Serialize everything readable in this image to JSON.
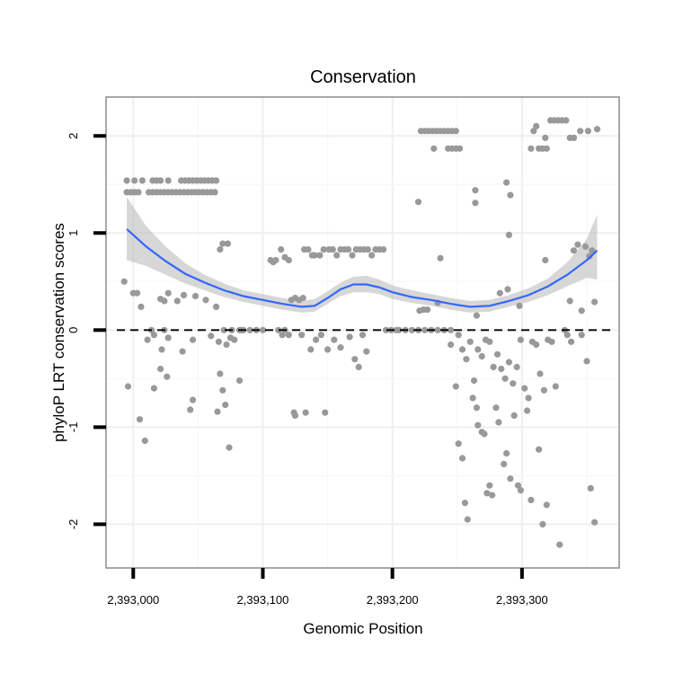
{
  "chart_data": {
    "type": "scatter",
    "title": "Conservation",
    "xlabel": "Genomic Position",
    "ylabel": "phyloP LRT conservation scores",
    "xlim": [
      2392979,
      2393375
    ],
    "ylim": [
      -2.45,
      2.4
    ],
    "x_ticks": [
      2393000,
      2393100,
      2393200,
      2393300
    ],
    "x_tick_labels": [
      "2,393,000",
      "2,393,100",
      "2,393,200",
      "2,393,300"
    ],
    "y_ticks": [
      -2,
      -1,
      0,
      1,
      2
    ],
    "y_tick_labels": [
      "-2",
      "-1",
      "0",
      "1",
      "2"
    ],
    "reference_line": {
      "y": 0,
      "style": "dashed",
      "color": "#000000"
    },
    "grid": true,
    "colors": {
      "points": "#999999",
      "smooth": "#3366ff",
      "band": "#bdbdbd"
    },
    "smooth": {
      "x": [
        2392995,
        2393010,
        2393025,
        2393040,
        2393055,
        2393070,
        2393085,
        2393100,
        2393115,
        2393130,
        2393140,
        2393150,
        2393160,
        2393170,
        2393180,
        2393190,
        2393200,
        2393215,
        2393230,
        2393245,
        2393260,
        2393275,
        2393290,
        2393305,
        2393320,
        2393335,
        2393350,
        2393358
      ],
      "y": [
        1.04,
        0.86,
        0.71,
        0.58,
        0.49,
        0.41,
        0.35,
        0.31,
        0.27,
        0.24,
        0.25,
        0.33,
        0.42,
        0.47,
        0.47,
        0.44,
        0.39,
        0.34,
        0.31,
        0.27,
        0.24,
        0.25,
        0.3,
        0.36,
        0.45,
        0.57,
        0.72,
        0.82
      ],
      "lower": [
        0.72,
        0.66,
        0.57,
        0.48,
        0.41,
        0.34,
        0.29,
        0.25,
        0.21,
        0.18,
        0.19,
        0.27,
        0.35,
        0.39,
        0.39,
        0.37,
        0.32,
        0.28,
        0.25,
        0.21,
        0.18,
        0.19,
        0.24,
        0.29,
        0.36,
        0.45,
        0.54,
        0.52
      ],
      "upper": [
        1.37,
        1.07,
        0.86,
        0.69,
        0.57,
        0.48,
        0.41,
        0.37,
        0.33,
        0.3,
        0.32,
        0.4,
        0.49,
        0.55,
        0.56,
        0.52,
        0.46,
        0.41,
        0.37,
        0.33,
        0.3,
        0.31,
        0.36,
        0.43,
        0.53,
        0.7,
        0.94,
        1.19
      ]
    },
    "points": [
      [
        2392995,
        1.54
      ],
      [
        2393001,
        1.54
      ],
      [
        2393007,
        1.54
      ],
      [
        2393015,
        1.54
      ],
      [
        2393018,
        1.54
      ],
      [
        2393021,
        1.54
      ],
      [
        2393027,
        1.54
      ],
      [
        2393037,
        1.54
      ],
      [
        2393040,
        1.54
      ],
      [
        2393043,
        1.54
      ],
      [
        2393046,
        1.54
      ],
      [
        2393049,
        1.54
      ],
      [
        2393052,
        1.54
      ],
      [
        2393055,
        1.54
      ],
      [
        2393058,
        1.54
      ],
      [
        2393061,
        1.54
      ],
      [
        2393064,
        1.54
      ],
      [
        2392995,
        1.42
      ],
      [
        2392998,
        1.42
      ],
      [
        2393001,
        1.42
      ],
      [
        2393004,
        1.42
      ],
      [
        2393012,
        1.42
      ],
      [
        2393015,
        1.42
      ],
      [
        2393018,
        1.42
      ],
      [
        2393021,
        1.42
      ],
      [
        2393024,
        1.42
      ],
      [
        2393027,
        1.42
      ],
      [
        2393030,
        1.42
      ],
      [
        2393033,
        1.42
      ],
      [
        2393036,
        1.42
      ],
      [
        2393039,
        1.42
      ],
      [
        2393042,
        1.42
      ],
      [
        2393045,
        1.42
      ],
      [
        2393048,
        1.42
      ],
      [
        2393051,
        1.42
      ],
      [
        2393054,
        1.42
      ],
      [
        2393057,
        1.42
      ],
      [
        2393060,
        1.42
      ],
      [
        2393063,
        1.42
      ],
      [
        2393067,
        0.83
      ],
      [
        2393069,
        0.89
      ],
      [
        2393073,
        0.89
      ],
      [
        2393106,
        0.72
      ],
      [
        2393108,
        0.7
      ],
      [
        2393110,
        0.72
      ],
      [
        2393114,
        0.83
      ],
      [
        2393117,
        0.75
      ],
      [
        2393120,
        0.72
      ],
      [
        2393132,
        0.83
      ],
      [
        2393135,
        0.83
      ],
      [
        2393138,
        0.77
      ],
      [
        2393140,
        0.77
      ],
      [
        2393144,
        0.77
      ],
      [
        2393147,
        0.83
      ],
      [
        2393151,
        0.83
      ],
      [
        2393154,
        0.83
      ],
      [
        2393157,
        0.77
      ],
      [
        2393160,
        0.83
      ],
      [
        2393163,
        0.83
      ],
      [
        2393166,
        0.83
      ],
      [
        2393169,
        0.77
      ],
      [
        2393172,
        0.83
      ],
      [
        2393175,
        0.83
      ],
      [
        2393178,
        0.83
      ],
      [
        2393181,
        0.83
      ],
      [
        2393184,
        0.77
      ],
      [
        2393187,
        0.83
      ],
      [
        2393190,
        0.83
      ],
      [
        2393193,
        0.83
      ],
      [
        2393222,
        2.05
      ],
      [
        2393225,
        2.05
      ],
      [
        2393228,
        2.05
      ],
      [
        2393231,
        2.05
      ],
      [
        2393234,
        2.05
      ],
      [
        2393237,
        2.05
      ],
      [
        2393240,
        2.05
      ],
      [
        2393243,
        2.05
      ],
      [
        2393246,
        2.05
      ],
      [
        2393249,
        2.05
      ],
      [
        2393232,
        1.87
      ],
      [
        2393243,
        1.87
      ],
      [
        2393246,
        1.87
      ],
      [
        2393249,
        1.87
      ],
      [
        2393252,
        1.87
      ],
      [
        2393220,
        1.32
      ],
      [
        2393264,
        1.44
      ],
      [
        2393264,
        1.31
      ],
      [
        2393288,
        1.52
      ],
      [
        2393291,
        1.39
      ],
      [
        2393290,
        0.98
      ],
      [
        2393307,
        1.87
      ],
      [
        2393309,
        2.05
      ],
      [
        2393311,
        2.1
      ],
      [
        2393313,
        1.87
      ],
      [
        2393316,
        1.87
      ],
      [
        2393319,
        1.87
      ],
      [
        2393318,
        1.98
      ],
      [
        2393322,
        2.16
      ],
      [
        2393325,
        2.16
      ],
      [
        2393328,
        2.16
      ],
      [
        2393331,
        2.16
      ],
      [
        2393334,
        2.16
      ],
      [
        2393337,
        1.98
      ],
      [
        2393340,
        1.98
      ],
      [
        2393345,
        2.05
      ],
      [
        2393351,
        2.05
      ],
      [
        2393358,
        2.07
      ],
      [
        2392993,
        0.5
      ],
      [
        2393000,
        0.38
      ],
      [
        2393003,
        0.38
      ],
      [
        2393006,
        0.24
      ],
      [
        2393021,
        0.32
      ],
      [
        2393024,
        0.3
      ],
      [
        2393027,
        0.38
      ],
      [
        2393034,
        0.3
      ],
      [
        2393039,
        0.36
      ],
      [
        2393048,
        0.35
      ],
      [
        2393056,
        0.31
      ],
      [
        2393064,
        0.24
      ],
      [
        2393070,
        0.0
      ],
      [
        2393076,
        0.0
      ],
      [
        2393082,
        0.0
      ],
      [
        2393085,
        0.0
      ],
      [
        2393090,
        0.0
      ],
      [
        2393095,
        0.0
      ],
      [
        2393100,
        0.0
      ],
      [
        2393112,
        0.0
      ],
      [
        2393117,
        0.0
      ],
      [
        2393122,
        0.31
      ],
      [
        2393125,
        0.33
      ],
      [
        2393128,
        0.31
      ],
      [
        2393131,
        0.33
      ],
      [
        2393205,
        0.0
      ],
      [
        2393210,
        0.0
      ],
      [
        2393215,
        0.0
      ],
      [
        2393220,
        0.0
      ],
      [
        2393225,
        0.0
      ],
      [
        2393230,
        0.0
      ],
      [
        2393235,
        0.0
      ],
      [
        2393240,
        0.0
      ],
      [
        2393245,
        0.0
      ],
      [
        2393203,
        0.0
      ],
      [
        2393199,
        0.0
      ],
      [
        2393195,
        0.0
      ],
      [
        2393221,
        0.2
      ],
      [
        2393224,
        0.21
      ],
      [
        2393227,
        0.21
      ],
      [
        2393235,
        0.28
      ],
      [
        2393237,
        0.74
      ],
      [
        2393265,
        0.15
      ],
      [
        2393283,
        0.38
      ],
      [
        2393289,
        0.42
      ],
      [
        2393298,
        0.25
      ],
      [
        2393318,
        0.72
      ],
      [
        2393337,
        0.3
      ],
      [
        2393340,
        0.82
      ],
      [
        2393343,
        0.88
      ],
      [
        2393346,
        0.2
      ],
      [
        2393349,
        0.86
      ],
      [
        2393352,
        0.76
      ],
      [
        2393354,
        0.82
      ],
      [
        2393356,
        0.29
      ],
      [
        2393014,
        0.0
      ],
      [
        2393024,
        0.0
      ],
      [
        2393011,
        -0.1
      ],
      [
        2393016,
        -0.05
      ],
      [
        2393022,
        -0.2
      ],
      [
        2393027,
        -0.08
      ],
      [
        2393038,
        -0.22
      ],
      [
        2393046,
        -0.1
      ],
      [
        2393060,
        -0.06
      ],
      [
        2393066,
        -0.12
      ],
      [
        2393072,
        -0.15
      ],
      [
        2393075,
        -0.08
      ],
      [
        2393078,
        -0.1
      ],
      [
        2393083,
        0.0
      ],
      [
        2393115,
        -0.05
      ],
      [
        2393120,
        -0.05
      ],
      [
        2393124,
        -0.85
      ],
      [
        2393125,
        -0.88
      ],
      [
        2393133,
        -0.85
      ],
      [
        2393130,
        -0.05
      ],
      [
        2393137,
        -0.2
      ],
      [
        2393141,
        -0.1
      ],
      [
        2393145,
        -0.05
      ],
      [
        2393148,
        -0.85
      ],
      [
        2393150,
        -0.2
      ],
      [
        2393155,
        -0.1
      ],
      [
        2393160,
        -0.18
      ],
      [
        2393167,
        -0.07
      ],
      [
        2393171,
        -0.3
      ],
      [
        2393174,
        -0.38
      ],
      [
        2393177,
        -0.05
      ],
      [
        2393180,
        -0.22
      ],
      [
        2393245,
        -0.15
      ],
      [
        2393251,
        -0.05
      ],
      [
        2393254,
        -0.2
      ],
      [
        2393257,
        -0.3
      ],
      [
        2393260,
        -0.12
      ],
      [
        2393263,
        -0.52
      ],
      [
        2393266,
        -0.2
      ],
      [
        2393269,
        -0.27
      ],
      [
        2393272,
        -0.1
      ],
      [
        2393275,
        -0.12
      ],
      [
        2393278,
        -0.38
      ],
      [
        2393281,
        -0.25
      ],
      [
        2393284,
        -0.4
      ],
      [
        2393287,
        -0.5
      ],
      [
        2393290,
        -0.33
      ],
      [
        2393293,
        -0.55
      ],
      [
        2393296,
        -0.38
      ],
      [
        2393299,
        -0.1
      ],
      [
        2393302,
        -0.6
      ],
      [
        2393305,
        -0.7
      ],
      [
        2393308,
        -0.12
      ],
      [
        2393311,
        -0.15
      ],
      [
        2393314,
        -0.45
      ],
      [
        2393317,
        -0.62
      ],
      [
        2393320,
        -0.1
      ],
      [
        2393323,
        -0.12
      ],
      [
        2393326,
        -0.58
      ],
      [
        2393333,
        0.0
      ],
      [
        2393335,
        -0.05
      ],
      [
        2393338,
        -0.12
      ],
      [
        2393346,
        -0.05
      ],
      [
        2393350,
        -0.32
      ],
      [
        2392996,
        -0.58
      ],
      [
        2393005,
        -0.92
      ],
      [
        2393009,
        -1.14
      ],
      [
        2393016,
        -0.6
      ],
      [
        2393021,
        -0.4
      ],
      [
        2393026,
        -0.48
      ],
      [
        2393044,
        -0.82
      ],
      [
        2393046,
        -0.72
      ],
      [
        2393065,
        -0.84
      ],
      [
        2393067,
        -0.45
      ],
      [
        2393069,
        -0.62
      ],
      [
        2393071,
        -0.77
      ],
      [
        2393074,
        -1.21
      ],
      [
        2393082,
        -0.52
      ],
      [
        2393249,
        -0.58
      ],
      [
        2393251,
        -1.17
      ],
      [
        2393254,
        -1.32
      ],
      [
        2393256,
        -1.78
      ],
      [
        2393258,
        -1.95
      ],
      [
        2393262,
        -0.7
      ],
      [
        2393265,
        -0.8
      ],
      [
        2393266,
        -0.98
      ],
      [
        2393269,
        -1.05
      ],
      [
        2393271,
        -1.07
      ],
      [
        2393273,
        -1.68
      ],
      [
        2393275,
        -1.6
      ],
      [
        2393277,
        -1.7
      ],
      [
        2393280,
        -0.8
      ],
      [
        2393282,
        -0.95
      ],
      [
        2393286,
        -1.38
      ],
      [
        2393288,
        -1.27
      ],
      [
        2393291,
        -1.53
      ],
      [
        2393294,
        -0.88
      ],
      [
        2393297,
        -1.6
      ],
      [
        2393299,
        -1.65
      ],
      [
        2393304,
        -0.83
      ],
      [
        2393307,
        -1.75
      ],
      [
        2393313,
        -1.23
      ],
      [
        2393316,
        -2.0
      ],
      [
        2393319,
        -1.8
      ],
      [
        2393329,
        -2.21
      ],
      [
        2393353,
        -1.63
      ],
      [
        2393356,
        -1.98
      ]
    ]
  }
}
